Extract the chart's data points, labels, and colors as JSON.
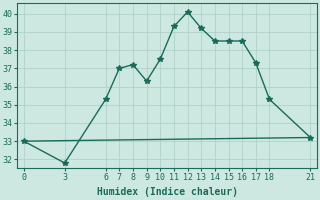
{
  "xlabel": "Humidex (Indice chaleur)",
  "ylabel": "",
  "bg_color": "#cce8e0",
  "grid_color": "#aaccC4",
  "line_color": "#1a6b5a",
  "xlim": [
    -0.5,
    21.5
  ],
  "ylim": [
    31.5,
    40.6
  ],
  "xticks": [
    0,
    3,
    6,
    7,
    8,
    9,
    10,
    11,
    12,
    13,
    14,
    15,
    16,
    17,
    18,
    21
  ],
  "yticks": [
    32,
    33,
    34,
    35,
    36,
    37,
    38,
    39,
    40
  ],
  "curve1_x": [
    0,
    3,
    6,
    7,
    8,
    9,
    10,
    11,
    12,
    13,
    14,
    15,
    16,
    17,
    18,
    21
  ],
  "curve1_y": [
    33.0,
    31.8,
    35.3,
    37.0,
    37.2,
    36.3,
    37.5,
    39.3,
    40.1,
    39.2,
    38.5,
    38.5,
    38.5,
    37.3,
    35.3,
    33.2
  ],
  "curve2_x": [
    0,
    21
  ],
  "curve2_y": [
    33.0,
    33.2
  ],
  "marker": "*",
  "markersize": 4,
  "linewidth": 1.0,
  "fontsize_label": 7,
  "fontsize_tick": 6
}
